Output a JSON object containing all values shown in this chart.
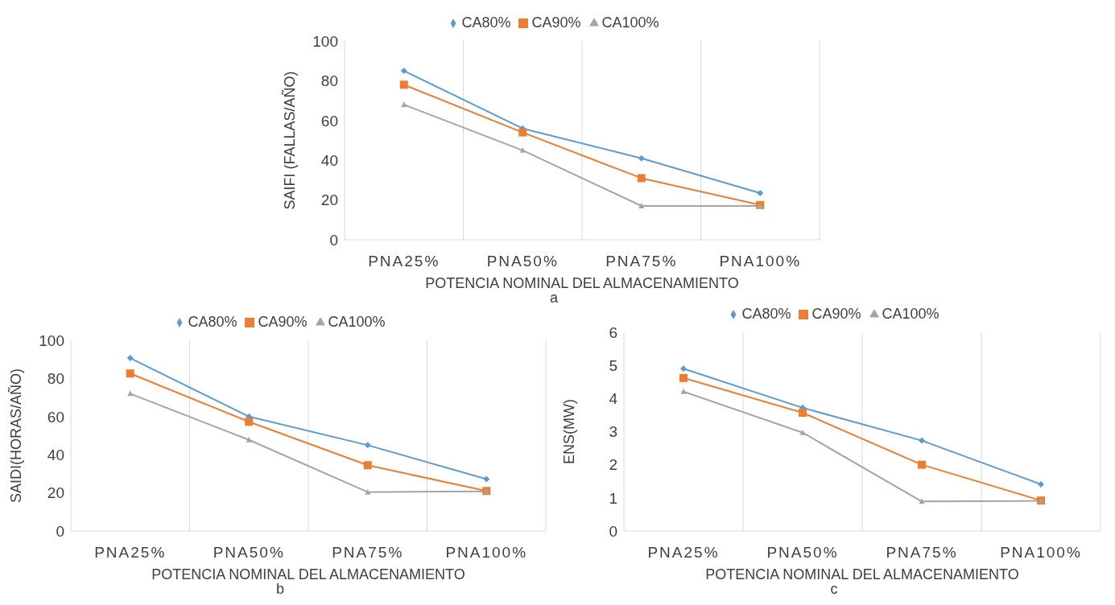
{
  "chart_data": [
    {
      "type": "line",
      "ylabel": "SAIFI (FALLAS/AÑO)",
      "xlabel": "POTENCIA NOMINAL DEL ALMACENAMIENTO",
      "annotations": [
        "a"
      ],
      "categories": [
        "PNA25%",
        "PNA50%",
        "PNA75%",
        "PNA100%"
      ],
      "ylim": [
        0,
        100
      ],
      "yticks": [
        0,
        20,
        40,
        60,
        80,
        100
      ],
      "grid": "x",
      "legend": "top",
      "series": [
        {
          "name": "CA80%",
          "color": "#5b9bd5",
          "marker": "diamond",
          "values": [
            85,
            56,
            41,
            23.5
          ]
        },
        {
          "name": "CA90%",
          "color": "#ed7d31",
          "marker": "square",
          "values": [
            78,
            54,
            31,
            17.5
          ]
        },
        {
          "name": "CA100%",
          "color": "#a5a5a5",
          "marker": "triangle",
          "values": [
            68,
            45,
            17,
            17
          ]
        }
      ]
    },
    {
      "type": "line",
      "ylabel": "SAIDI(HORAS/AÑO)",
      "xlabel": "POTENCIA NOMINAL DEL ALMACENAMIENTO",
      "annotations": [
        "b"
      ],
      "categories": [
        "PNA25%",
        "PNA50%",
        "PNA75%",
        "PNA100%"
      ],
      "ylim": [
        0,
        100
      ],
      "yticks": [
        0,
        20,
        40,
        60,
        80,
        100
      ],
      "grid": "x",
      "legend": "top",
      "series": [
        {
          "name": "CA80%",
          "color": "#5b9bd5",
          "marker": "diamond",
          "values": [
            90.7,
            60,
            45,
            27.2
          ]
        },
        {
          "name": "CA90%",
          "color": "#ed7d31",
          "marker": "square",
          "values": [
            82.6,
            57.3,
            34.5,
            21
          ]
        },
        {
          "name": "CA100%",
          "color": "#a5a5a5",
          "marker": "triangle",
          "values": [
            72,
            47.8,
            20.4,
            20.8
          ]
        }
      ]
    },
    {
      "type": "line",
      "ylabel": "ENS(MW)",
      "xlabel": "POTENCIA NOMINAL DEL ALMACENAMIENTO",
      "annotations": [
        "c"
      ],
      "categories": [
        "PNA25%",
        "PNA50%",
        "PNA75%",
        "PNA100%"
      ],
      "ylim": [
        0,
        6
      ],
      "yticks": [
        0,
        1,
        2,
        3,
        4,
        5,
        6
      ],
      "grid": "x",
      "legend": "top",
      "series": [
        {
          "name": "CA80%",
          "color": "#5b9bd5",
          "marker": "diamond",
          "values": [
            4.9,
            3.72,
            2.73,
            1.41
          ]
        },
        {
          "name": "CA90%",
          "color": "#ed7d31",
          "marker": "square",
          "values": [
            4.62,
            3.57,
            2.0,
            0.92
          ]
        },
        {
          "name": "CA100%",
          "color": "#a5a5a5",
          "marker": "triangle",
          "values": [
            4.21,
            2.97,
            0.89,
            0.91
          ]
        }
      ]
    }
  ]
}
